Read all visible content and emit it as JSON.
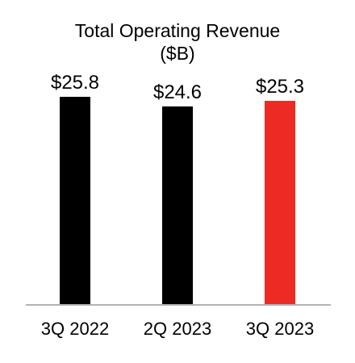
{
  "chart_data": {
    "type": "bar",
    "title": "Total Operating Revenue",
    "subtitle": "($B)",
    "categories": [
      "3Q 2022",
      "2Q 2023",
      "3Q 2023"
    ],
    "values": [
      25.8,
      24.6,
      25.3
    ],
    "value_labels": [
      "$25.8",
      "$24.6",
      "$25.3"
    ],
    "bar_colors": [
      "#000000",
      "#000000",
      "#ee2a24"
    ],
    "xlabel": "",
    "ylabel": "",
    "ylim": [
      0,
      25.8
    ],
    "grid": false,
    "axis_color": "#b3b3b3"
  }
}
